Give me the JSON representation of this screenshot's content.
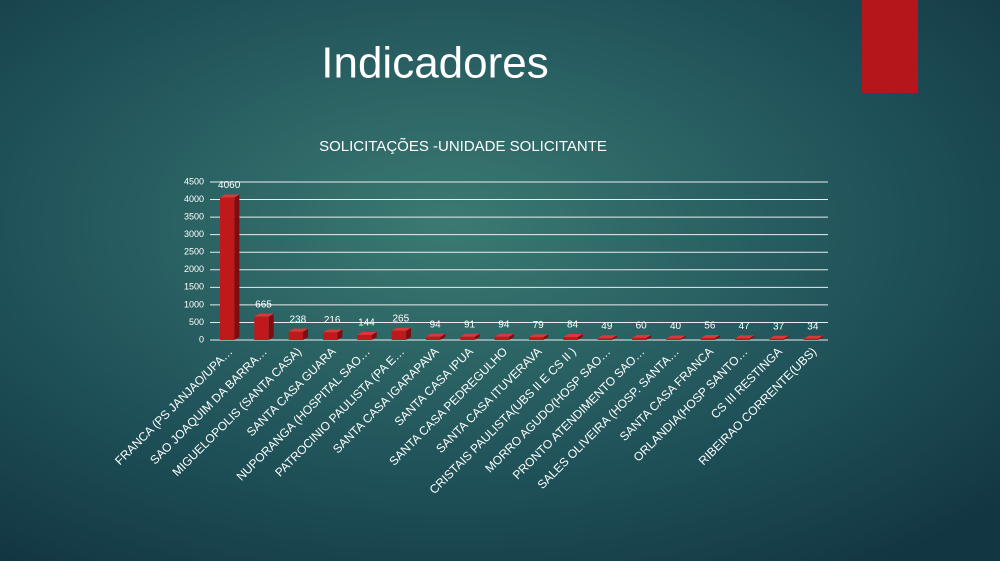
{
  "slide_title": "Indicadores",
  "chart_data": {
    "type": "bar",
    "title": "SOLICITAÇÕES -UNIDADE SOLICITANTE",
    "categories": [
      "FRANCA (PS  JANJAO/UPA…",
      "SAO JOAQUIM DA BARRA…",
      "MIGUELOPOLIS (SANTA CASA)",
      "SANTA CASA GUARA",
      "NUPORANGA (HOSPITAL SAO…",
      "PATROCINIO PAULISTA (PA E…",
      "SANTA CASA IGARAPAVA",
      "SANTA CASA IPUA",
      "SANTA CASA PEDREGULHO",
      "SANTA CASA ITUVERAVA",
      "CRISTAIS PAULISTA(UBS II  E CS II )",
      "MORRO AGUDO(HOSP SAO…",
      "PRONTO ATENDIMENTO SAO…",
      "SALES OLIVEIRA (HOSP. SANTA…",
      "SANTA CASA FRANCA",
      "ORLANDIA(HOSP SANTO…",
      "CS III RESTINGA",
      "RIBEIRAO CORRENTE(UBS)"
    ],
    "values": [
      4060,
      665,
      238,
      216,
      144,
      265,
      94,
      91,
      94,
      79,
      84,
      49,
      60,
      40,
      56,
      47,
      37,
      34
    ],
    "color": "#c0191b",
    "ylim": [
      0,
      4500
    ],
    "yticks": [
      0,
      500,
      1000,
      1500,
      2000,
      2500,
      3000,
      3500,
      4000,
      4500
    ],
    "grid": true
  }
}
